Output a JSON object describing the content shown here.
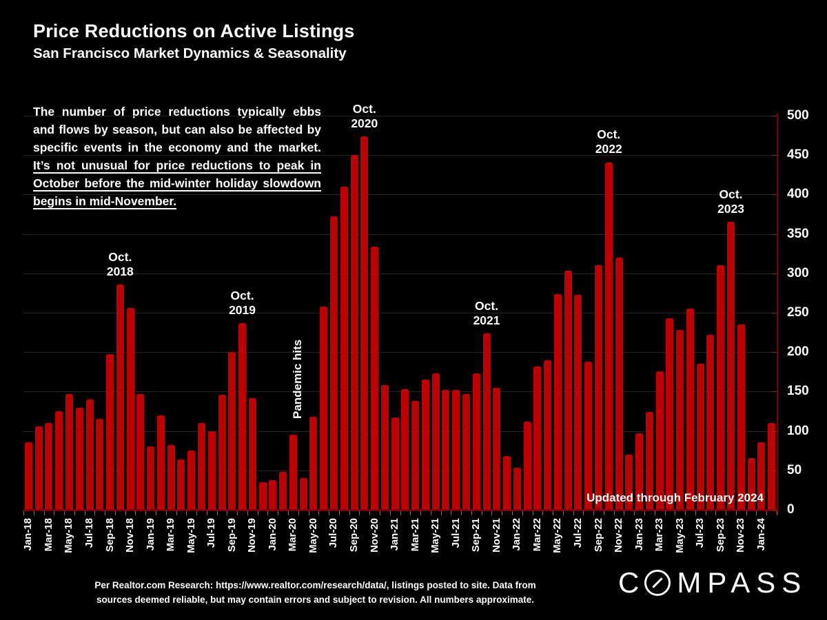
{
  "header": {
    "title": "Price Reductions on Active Listings",
    "subtitle": "San Francisco Market Dynamics & Seasonality"
  },
  "description": {
    "normal": "The number of price reductions typically ebbs and flows by season, but can also be affected by specific events in the economy and the market. ",
    "underlined": "It’s not unusual for price reductions to peak in October before the mid-winter holiday slowdown begins in mid-November."
  },
  "chart_data": {
    "type": "bar",
    "title": "Price Reductions on Active Listings",
    "xlabel": "",
    "ylabel": "",
    "ylim": [
      0,
      500
    ],
    "y_ticks": [
      0,
      50,
      100,
      150,
      200,
      250,
      300,
      350,
      400,
      450,
      500
    ],
    "x_label_interval": 2,
    "grid": true,
    "bar_color": "#C00000",
    "axis_color": "#7D0000",
    "grid_color": "#262626",
    "categories": [
      "Jan-18",
      "Feb-18",
      "Mar-18",
      "Apr-18",
      "May-18",
      "Jun-18",
      "Jul-18",
      "Aug-18",
      "Sep-18",
      "Oct-18",
      "Nov-18",
      "Dec-18",
      "Jan-19",
      "Feb-19",
      "Mar-19",
      "Apr-19",
      "May-19",
      "Jun-19",
      "Jul-19",
      "Aug-19",
      "Sep-19",
      "Oct-19",
      "Nov-19",
      "Dec-19",
      "Jan-20",
      "Feb-20",
      "Mar-20",
      "Apr-20",
      "May-20",
      "Jun-20",
      "Jul-20",
      "Aug-20",
      "Sep-20",
      "Oct-20",
      "Nov-20",
      "Dec-20",
      "Jan-21",
      "Feb-21",
      "Mar-21",
      "Apr-21",
      "May-21",
      "Jun-21",
      "Jul-21",
      "Aug-21",
      "Sep-21",
      "Oct-21",
      "Nov-21",
      "Dec-21",
      "Jan-22",
      "Feb-22",
      "Mar-22",
      "Apr-22",
      "May-22",
      "Jun-22",
      "Jul-22",
      "Aug-22",
      "Sep-22",
      "Oct-22",
      "Nov-22",
      "Dec-22",
      "Jan-23",
      "Feb-23",
      "Mar-23",
      "Apr-23",
      "May-23",
      "Jun-23",
      "Jul-23",
      "Aug-23",
      "Sep-23",
      "Oct-23",
      "Nov-23",
      "Dec-23",
      "Jan-24",
      "Feb-24"
    ],
    "values": [
      86,
      106,
      110,
      125,
      147,
      129,
      140,
      115,
      198,
      286,
      256,
      147,
      80,
      120,
      82,
      64,
      75,
      110,
      100,
      146,
      200,
      237,
      142,
      35,
      38,
      48,
      95,
      40,
      118,
      258,
      372,
      410,
      450,
      474,
      334,
      158,
      117,
      153,
      138,
      165,
      173,
      152,
      152,
      147,
      173,
      224,
      155,
      68,
      53,
      112,
      182,
      190,
      274,
      303,
      273,
      188,
      310,
      441,
      320,
      70,
      97,
      124,
      176,
      243,
      228,
      255,
      185,
      222,
      310,
      365,
      235,
      66,
      86,
      110
    ],
    "annotations": [
      {
        "kind": "peak",
        "line1": "Oct.",
        "line2": "2018",
        "bar_index": 9
      },
      {
        "kind": "peak",
        "line1": "Oct.",
        "line2": "2019",
        "bar_index": 21
      },
      {
        "kind": "peak",
        "line1": "Oct.",
        "line2": "2020",
        "bar_index": 33
      },
      {
        "kind": "peak",
        "line1": "Oct.",
        "line2": "2021",
        "bar_index": 45
      },
      {
        "kind": "peak",
        "line1": "Oct.",
        "line2": "2022",
        "bar_index": 57
      },
      {
        "kind": "peak",
        "line1": "Oct.",
        "line2": "2023",
        "bar_index": 69
      },
      {
        "kind": "vertical",
        "text": "Pandemic hits",
        "bar_index": 27,
        "anchor_value": 115
      }
    ],
    "overlay_label": "Updated through February 2024"
  },
  "footer": {
    "line1": "Per Realtor.com Research:  https://www.realtor.com/research/data/, listings posted to site. Data from",
    "line2": "sources deemed reliable, but may contain errors and subject to revision. All numbers approximate."
  },
  "logo": {
    "name": "COMPASS",
    "prefix": "C",
    "suffix": "MPASS"
  }
}
